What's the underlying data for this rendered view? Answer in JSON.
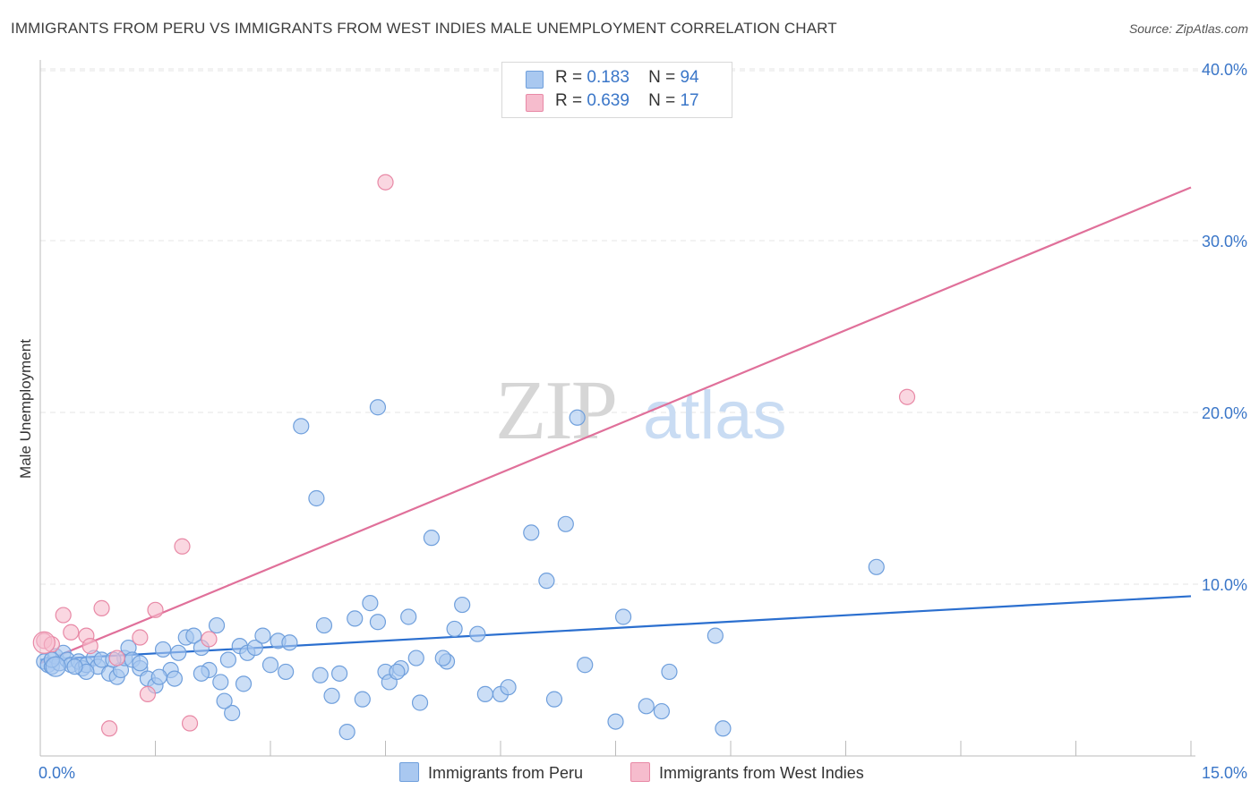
{
  "title": "IMMIGRANTS FROM PERU VS IMMIGRANTS FROM WEST INDIES MALE UNEMPLOYMENT CORRELATION CHART",
  "source": "Source: ZipAtlas.com",
  "watermark": {
    "zip": "ZIP",
    "atlas": "atlas"
  },
  "legend": {
    "peru": {
      "r_label": "R =",
      "r_value": "0.183",
      "n_label": "N =",
      "n_value": "94"
    },
    "west_indies": {
      "r_label": "R =",
      "r_value": "0.639",
      "n_label": "N =",
      "n_value": "17"
    }
  },
  "bottom_legend": {
    "peru": "Immigrants from Peru",
    "west_indies": "Immigrants from West Indies"
  },
  "colors": {
    "peru_fill": "#a9c8f0",
    "peru_stroke": "#6f9fdc",
    "peru_line": "#2b6fcf",
    "wi_fill": "#f6bccd",
    "wi_stroke": "#e889a6",
    "wi_line": "#e0709a",
    "axis_text": "#3a76c8",
    "grid": "#e6e6e6"
  },
  "chart_data": {
    "type": "scatter",
    "title": "IMMIGRANTS FROM PERU VS IMMIGRANTS FROM WEST INDIES MALE UNEMPLOYMENT CORRELATION CHART",
    "xlabel": "",
    "ylabel": "Male Unemployment",
    "xlim": [
      0,
      15
    ],
    "ylim": [
      0,
      40
    ],
    "x_tick_labels": [
      "0.0%",
      "15.0%"
    ],
    "y_ticks": [
      10,
      20,
      30,
      40
    ],
    "y_tick_labels": [
      "10.0%",
      "20.0%",
      "30.0%",
      "40.0%"
    ],
    "grid": true,
    "legend_position": "top-center",
    "series": [
      {
        "name": "Immigrants from Peru",
        "R": 0.183,
        "N": 94,
        "trend": {
          "x": [
            0,
            15
          ],
          "y": [
            5.6,
            9.3
          ]
        },
        "points": [
          [
            0.05,
            5.5
          ],
          [
            0.1,
            5.3
          ],
          [
            0.15,
            5.2
          ],
          [
            0.2,
            5.8
          ],
          [
            0.25,
            5.4
          ],
          [
            0.3,
            6.0
          ],
          [
            0.35,
            5.6
          ],
          [
            0.4,
            5.3
          ],
          [
            0.5,
            5.5
          ],
          [
            0.55,
            5.1
          ],
          [
            0.6,
            5.3
          ],
          [
            0.7,
            5.7
          ],
          [
            0.75,
            5.2
          ],
          [
            0.8,
            5.6
          ],
          [
            0.9,
            4.8
          ],
          [
            1.0,
            4.6
          ],
          [
            1.05,
            5.0
          ],
          [
            1.1,
            5.7
          ],
          [
            1.15,
            6.3
          ],
          [
            1.2,
            5.6
          ],
          [
            1.3,
            5.1
          ],
          [
            1.4,
            4.5
          ],
          [
            1.5,
            4.1
          ],
          [
            1.6,
            6.2
          ],
          [
            1.7,
            5.0
          ],
          [
            1.8,
            6.0
          ],
          [
            1.9,
            6.9
          ],
          [
            2.0,
            7.0
          ],
          [
            2.1,
            6.3
          ],
          [
            2.2,
            5.0
          ],
          [
            2.3,
            7.6
          ],
          [
            2.35,
            4.3
          ],
          [
            2.45,
            5.6
          ],
          [
            2.5,
            2.5
          ],
          [
            2.6,
            6.4
          ],
          [
            2.7,
            6.0
          ],
          [
            2.8,
            6.3
          ],
          [
            2.9,
            7.0
          ],
          [
            3.0,
            5.3
          ],
          [
            3.1,
            6.7
          ],
          [
            3.2,
            4.9
          ],
          [
            3.25,
            6.6
          ],
          [
            3.4,
            19.2
          ],
          [
            3.6,
            15.0
          ],
          [
            3.7,
            7.6
          ],
          [
            3.8,
            3.5
          ],
          [
            3.9,
            4.8
          ],
          [
            4.0,
            1.4
          ],
          [
            4.1,
            8.0
          ],
          [
            4.2,
            3.3
          ],
          [
            4.3,
            8.9
          ],
          [
            4.4,
            7.8
          ],
          [
            4.5,
            4.9
          ],
          [
            4.55,
            4.3
          ],
          [
            4.7,
            5.1
          ],
          [
            4.8,
            8.1
          ],
          [
            4.9,
            5.7
          ],
          [
            4.95,
            3.1
          ],
          [
            5.1,
            12.7
          ],
          [
            5.3,
            5.5
          ],
          [
            5.4,
            7.4
          ],
          [
            5.5,
            8.8
          ],
          [
            5.7,
            7.1
          ],
          [
            5.8,
            3.6
          ],
          [
            4.4,
            20.3
          ],
          [
            6.0,
            3.6
          ],
          [
            6.1,
            4.0
          ],
          [
            6.4,
            13.0
          ],
          [
            6.6,
            10.2
          ],
          [
            6.7,
            3.3
          ],
          [
            6.85,
            13.5
          ],
          [
            7.0,
            19.7
          ],
          [
            7.1,
            5.3
          ],
          [
            7.5,
            2.0
          ],
          [
            7.6,
            8.1
          ],
          [
            7.9,
            2.9
          ],
          [
            8.1,
            2.6
          ],
          [
            8.2,
            4.9
          ],
          [
            8.8,
            7.0
          ],
          [
            8.9,
            1.6
          ],
          [
            10.9,
            11.0
          ],
          [
            0.15,
            5.6
          ],
          [
            0.6,
            4.9
          ],
          [
            0.95,
            5.6
          ],
          [
            1.3,
            5.4
          ],
          [
            1.75,
            4.5
          ],
          [
            2.1,
            4.8
          ],
          [
            2.65,
            4.2
          ],
          [
            3.65,
            4.7
          ],
          [
            5.25,
            5.7
          ],
          [
            4.65,
            4.9
          ],
          [
            1.55,
            4.6
          ],
          [
            0.45,
            5.2
          ],
          [
            2.4,
            3.2
          ]
        ]
      },
      {
        "name": "Immigrants from West Indies",
        "R": 0.639,
        "N": 17,
        "trend": {
          "x": [
            0,
            15
          ],
          "y": [
            5.4,
            33.1
          ]
        },
        "points": [
          [
            0.05,
            6.7
          ],
          [
            0.15,
            6.5
          ],
          [
            0.3,
            8.2
          ],
          [
            0.4,
            7.2
          ],
          [
            0.6,
            7.0
          ],
          [
            0.65,
            6.4
          ],
          [
            0.8,
            8.6
          ],
          [
            0.9,
            1.6
          ],
          [
            1.0,
            5.7
          ],
          [
            1.3,
            6.9
          ],
          [
            1.4,
            3.6
          ],
          [
            1.5,
            8.5
          ],
          [
            1.85,
            12.2
          ],
          [
            1.95,
            1.9
          ],
          [
            2.2,
            6.8
          ],
          [
            4.5,
            33.4
          ],
          [
            11.3,
            20.9
          ]
        ]
      }
    ]
  }
}
